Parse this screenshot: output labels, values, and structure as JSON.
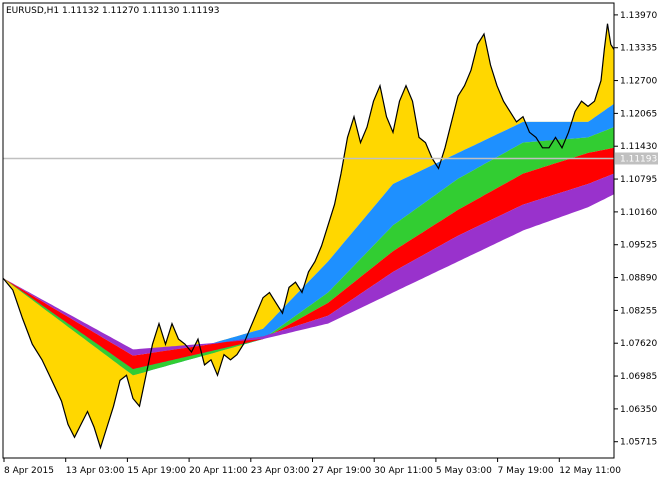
{
  "chart_data": {
    "type": "line",
    "title": "EURUSD,H1  1.11132 1.11270 1.11130 1.11193",
    "current_price_label": "1.11193",
    "current_price": 1.11193,
    "ylim": [
      1.054,
      1.142
    ],
    "y_ticks": [
      "1.13970",
      "1.13335",
      "1.12700",
      "1.12065",
      "1.11430",
      "1.10795",
      "1.10160",
      "1.09525",
      "1.08890",
      "1.08255",
      "1.07620",
      "1.06985",
      "1.06350",
      "1.05715"
    ],
    "x_ticks": [
      "8 Apr 2015",
      "13 Apr 03:00",
      "15 Apr 19:00",
      "20 Apr 11:00",
      "23 Apr 03:00",
      "27 Apr 19:00",
      "30 Apr 11:00",
      "5 May 03:00",
      "7 May 19:00",
      "12 May 11:00"
    ],
    "band_colors": {
      "gold": "#ffd700",
      "blue": "#1e90ff",
      "green": "#32cd32",
      "red": "#ff0000",
      "violet": "#9932cc",
      "cyan": "#40e0d0",
      "magenta": "#ff00ff",
      "maroon": "#8b0000"
    },
    "price_path": [
      [
        0,
        1.0888
      ],
      [
        3,
        1.0865
      ],
      [
        6,
        1.081
      ],
      [
        9,
        1.076
      ],
      [
        12,
        1.073
      ],
      [
        15,
        1.069
      ],
      [
        18,
        1.065
      ],
      [
        20,
        1.0605
      ],
      [
        22,
        1.058
      ],
      [
        24,
        1.0605
      ],
      [
        26,
        1.063
      ],
      [
        28,
        1.06
      ],
      [
        30,
        1.056
      ],
      [
        32,
        1.06
      ],
      [
        34,
        1.064
      ],
      [
        36,
        1.069
      ],
      [
        38,
        1.07
      ],
      [
        40,
        1.0655
      ],
      [
        42,
        1.064
      ],
      [
        44,
        1.07
      ],
      [
        46,
        1.076
      ],
      [
        48,
        1.08
      ],
      [
        50,
        1.076
      ],
      [
        52,
        1.08
      ],
      [
        54,
        1.077
      ],
      [
        56,
        1.076
      ],
      [
        58,
        1.0745
      ],
      [
        60,
        1.077
      ],
      [
        62,
        1.072
      ],
      [
        64,
        1.073
      ],
      [
        66,
        1.07
      ],
      [
        68,
        1.074
      ],
      [
        70,
        1.073
      ],
      [
        72,
        1.074
      ],
      [
        74,
        1.076
      ],
      [
        76,
        1.079
      ],
      [
        78,
        1.082
      ],
      [
        80,
        1.085
      ],
      [
        82,
        1.086
      ],
      [
        84,
        1.084
      ],
      [
        86,
        1.082
      ],
      [
        88,
        1.087
      ],
      [
        90,
        1.088
      ],
      [
        92,
        1.086
      ],
      [
        94,
        1.09
      ],
      [
        96,
        1.092
      ],
      [
        98,
        1.095
      ],
      [
        100,
        1.099
      ],
      [
        102,
        1.103
      ],
      [
        104,
        1.109
      ],
      [
        106,
        1.116
      ],
      [
        108,
        1.12
      ],
      [
        110,
        1.115
      ],
      [
        112,
        1.118
      ],
      [
        114,
        1.123
      ],
      [
        116,
        1.126
      ],
      [
        118,
        1.12
      ],
      [
        120,
        1.117
      ],
      [
        122,
        1.123
      ],
      [
        124,
        1.126
      ],
      [
        126,
        1.123
      ],
      [
        128,
        1.116
      ],
      [
        130,
        1.115
      ],
      [
        132,
        1.112
      ],
      [
        134,
        1.11
      ],
      [
        136,
        1.114
      ],
      [
        138,
        1.119
      ],
      [
        140,
        1.124
      ],
      [
        142,
        1.126
      ],
      [
        144,
        1.129
      ],
      [
        146,
        1.134
      ],
      [
        148,
        1.136
      ],
      [
        150,
        1.13
      ],
      [
        152,
        1.126
      ],
      [
        154,
        1.123
      ],
      [
        156,
        1.121
      ],
      [
        158,
        1.119
      ],
      [
        160,
        1.12
      ],
      [
        162,
        1.117
      ],
      [
        164,
        1.116
      ],
      [
        166,
        1.114
      ],
      [
        168,
        1.114
      ],
      [
        170,
        1.116
      ],
      [
        172,
        1.114
      ],
      [
        174,
        1.117
      ],
      [
        176,
        1.121
      ],
      [
        178,
        1.123
      ],
      [
        180,
        1.122
      ],
      [
        182,
        1.123
      ],
      [
        184,
        1.127
      ],
      [
        185,
        1.133
      ],
      [
        186,
        1.138
      ],
      [
        187,
        1.134
      ],
      [
        188,
        1.133
      ]
    ],
    "bands": [
      {
        "color": "gold",
        "path": [
          [
            0,
            1.0888
          ],
          [
            40,
            1.0718
          ],
          [
            80,
            1.079
          ],
          [
            100,
            1.092
          ],
          [
            120,
            1.107
          ],
          [
            140,
            1.113
          ],
          [
            160,
            1.119
          ],
          [
            180,
            1.119
          ],
          [
            188,
            1.1225
          ]
        ]
      },
      {
        "color": "blue",
        "path": [
          [
            0,
            1.0888
          ],
          [
            40,
            1.07
          ],
          [
            80,
            1.077
          ],
          [
            100,
            1.086
          ],
          [
            120,
            1.099
          ],
          [
            140,
            1.108
          ],
          [
            160,
            1.115
          ],
          [
            180,
            1.116
          ],
          [
            188,
            1.118
          ]
        ]
      },
      {
        "color": "green",
        "path": [
          [
            0,
            1.0888
          ],
          [
            40,
            1.0712
          ],
          [
            80,
            1.077
          ],
          [
            100,
            1.084
          ],
          [
            120,
            1.094
          ],
          [
            140,
            1.102
          ],
          [
            160,
            1.109
          ],
          [
            180,
            1.113
          ],
          [
            188,
            1.114
          ]
        ]
      },
      {
        "color": "red",
        "path": [
          [
            0,
            1.0888
          ],
          [
            40,
            1.0738
          ],
          [
            80,
            1.0775
          ],
          [
            100,
            1.0815
          ],
          [
            120,
            1.09
          ],
          [
            140,
            1.097
          ],
          [
            160,
            1.103
          ],
          [
            180,
            1.107
          ],
          [
            188,
            1.109
          ]
        ]
      },
      {
        "color": "violet",
        "path": [
          [
            0,
            1.0888
          ],
          [
            40,
            1.075
          ],
          [
            80,
            1.077
          ],
          [
            100,
            1.08
          ],
          [
            120,
            1.086
          ],
          [
            140,
            1.092
          ],
          [
            160,
            1.098
          ],
          [
            180,
            1.1025
          ],
          [
            188,
            1.105
          ]
        ]
      }
    ]
  }
}
